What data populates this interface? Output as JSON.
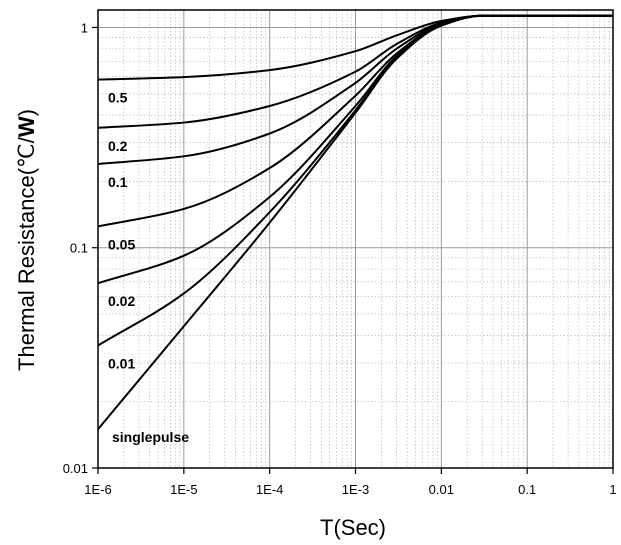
{
  "chart_data": {
    "type": "line",
    "title": "",
    "xlabel": "T(Sec)",
    "ylabel": {
      "prefix": "Thermal Resistance(℃/",
      "unit": "W",
      "suffix": ")"
    },
    "x_scale": "log",
    "y_scale": "log",
    "xlim": [
      1e-06,
      1
    ],
    "ylim": [
      0.01,
      1.2
    ],
    "grid": true,
    "x_ticks": [
      {
        "value": 1e-06,
        "label": "1E-6"
      },
      {
        "value": 1e-05,
        "label": "1E-5"
      },
      {
        "value": 0.0001,
        "label": "1E-4"
      },
      {
        "value": 0.001,
        "label": "1E-3"
      },
      {
        "value": 0.01,
        "label": "0.01"
      },
      {
        "value": 0.1,
        "label": "0.1"
      },
      {
        "value": 1,
        "label": "1"
      }
    ],
    "y_ticks": [
      {
        "value": 0.01,
        "label": "0.01"
      },
      {
        "value": 0.1,
        "label": "0.1"
      },
      {
        "value": 1,
        "label": "1"
      }
    ],
    "series": [
      {
        "name": "0.5",
        "x": [
          1e-06,
          1e-05,
          0.0001,
          0.001,
          0.003,
          0.01,
          0.03,
          1
        ],
        "y": [
          0.58,
          0.595,
          0.64,
          0.78,
          0.92,
          1.07,
          1.13,
          1.13
        ]
      },
      {
        "name": "0.2",
        "x": [
          1e-06,
          1e-05,
          0.0001,
          0.001,
          0.003,
          0.01,
          0.03,
          1
        ],
        "y": [
          0.35,
          0.37,
          0.44,
          0.63,
          0.84,
          1.05,
          1.13,
          1.13
        ]
      },
      {
        "name": "0.1",
        "x": [
          1e-06,
          1e-05,
          0.0001,
          0.001,
          0.003,
          0.01,
          0.03,
          1
        ],
        "y": [
          0.24,
          0.26,
          0.33,
          0.56,
          0.8,
          1.04,
          1.13,
          1.13
        ]
      },
      {
        "name": "0.05",
        "x": [
          1e-06,
          1e-05,
          0.0001,
          0.001,
          0.003,
          0.01,
          0.03,
          1
        ],
        "y": [
          0.125,
          0.15,
          0.23,
          0.49,
          0.76,
          1.03,
          1.13,
          1.13
        ]
      },
      {
        "name": "0.02",
        "x": [
          1e-06,
          1e-05,
          0.0001,
          0.001,
          0.003,
          0.01,
          0.03,
          1
        ],
        "y": [
          0.069,
          0.092,
          0.17,
          0.44,
          0.74,
          1.03,
          1.13,
          1.13
        ]
      },
      {
        "name": "0.01",
        "x": [
          1e-06,
          1e-05,
          0.0001,
          0.001,
          0.003,
          0.01,
          0.03,
          1
        ],
        "y": [
          0.036,
          0.062,
          0.145,
          0.42,
          0.73,
          1.02,
          1.13,
          1.13
        ]
      },
      {
        "name": "singlepulse",
        "x": [
          1e-06,
          1e-05,
          0.0001,
          0.001,
          0.003,
          0.01,
          0.03,
          1
        ],
        "y": [
          0.015,
          0.044,
          0.13,
          0.41,
          0.72,
          1.02,
          1.13,
          1.13
        ]
      }
    ]
  }
}
